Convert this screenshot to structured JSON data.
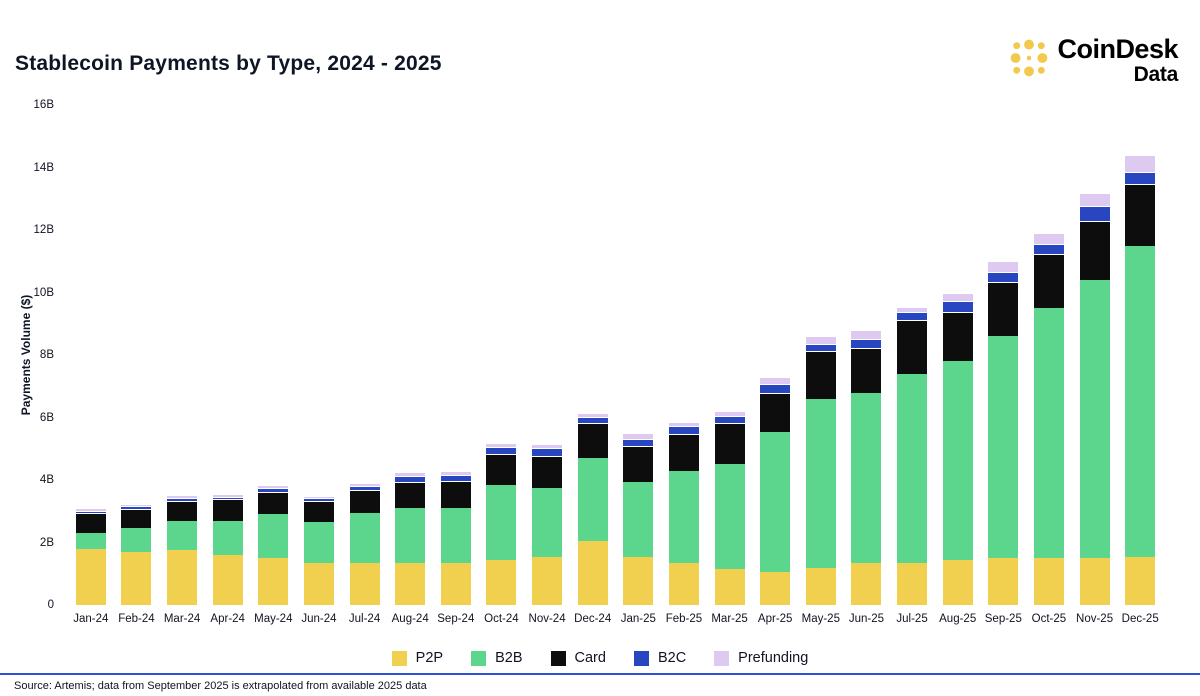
{
  "header": {
    "title": "Stablecoin Payments by Type, 2024 - 2025",
    "logo": {
      "brand": "CoinDesk",
      "sub": "Data",
      "icon": "coindesk-dots-icon"
    }
  },
  "chart_data": {
    "type": "bar",
    "stacked": true,
    "title": "Stablecoin Payments by Type, 2024 - 2025",
    "xlabel": "",
    "ylabel": "Payments Volume ($)",
    "units": "billions USD",
    "ylim": [
      0,
      16
    ],
    "grid": false,
    "legend_position": "bottom",
    "yticks": [
      {
        "label": "0",
        "value": 0
      },
      {
        "label": "2B",
        "value": 2
      },
      {
        "label": "4B",
        "value": 4
      },
      {
        "label": "6B",
        "value": 6
      },
      {
        "label": "8B",
        "value": 8
      },
      {
        "label": "10B",
        "value": 10
      },
      {
        "label": "12B",
        "value": 12
      },
      {
        "label": "14B",
        "value": 14
      },
      {
        "label": "16B",
        "value": 16
      }
    ],
    "categories": [
      "Jan-24",
      "Feb-24",
      "Mar-24",
      "Apr-24",
      "May-24",
      "Jun-24",
      "Jul-24",
      "Aug-24",
      "Sep-24",
      "Oct-24",
      "Nov-24",
      "Dec-24",
      "Jan-25",
      "Feb-25",
      "Mar-25",
      "Apr-25",
      "May-25",
      "Jun-25",
      "Jul-25",
      "Aug-25",
      "Sep-25",
      "Oct-25",
      "Nov-25",
      "Dec-25"
    ],
    "series": [
      {
        "name": "P2P",
        "color": "#F2D04F",
        "values": [
          1.8,
          1.7,
          1.75,
          1.6,
          1.5,
          1.35,
          1.35,
          1.35,
          1.35,
          1.45,
          1.55,
          2.05,
          1.55,
          1.35,
          1.15,
          1.05,
          1.2,
          1.35,
          1.35,
          1.45,
          1.5,
          1.5,
          1.5,
          1.55
        ]
      },
      {
        "name": "B2B",
        "color": "#5CD68C",
        "values": [
          0.5,
          0.75,
          0.95,
          1.1,
          1.4,
          1.3,
          1.6,
          1.75,
          1.75,
          2.4,
          2.2,
          2.65,
          2.4,
          2.95,
          3.35,
          4.5,
          5.4,
          5.45,
          6.05,
          6.35,
          7.1,
          8.0,
          8.9,
          9.95
        ]
      },
      {
        "name": "Card",
        "color": "#0D0D0D",
        "values": [
          0.6,
          0.6,
          0.6,
          0.65,
          0.7,
          0.65,
          0.7,
          0.8,
          0.85,
          0.95,
          1.0,
          1.1,
          1.1,
          1.15,
          1.3,
          1.2,
          1.5,
          1.4,
          1.7,
          1.55,
          1.7,
          1.7,
          1.85,
          1.95
        ]
      },
      {
        "name": "B2C",
        "color": "#2846C0",
        "values": [
          0.05,
          0.05,
          0.07,
          0.05,
          0.08,
          0.05,
          0.08,
          0.15,
          0.15,
          0.2,
          0.2,
          0.15,
          0.2,
          0.2,
          0.2,
          0.25,
          0.2,
          0.25,
          0.2,
          0.3,
          0.3,
          0.3,
          0.45,
          0.35
        ]
      },
      {
        "name": "Prefunding",
        "color": "#DEC9F1",
        "values": [
          0.05,
          0.05,
          0.05,
          0.05,
          0.07,
          0.05,
          0.07,
          0.1,
          0.1,
          0.1,
          0.1,
          0.1,
          0.15,
          0.1,
          0.1,
          0.2,
          0.2,
          0.25,
          0.15,
          0.25,
          0.3,
          0.3,
          0.4,
          0.5
        ]
      }
    ]
  },
  "footer": {
    "source": "Source: Artemis; data from September 2025 is extrapolated from available 2025 data"
  },
  "colors": {
    "brand_yellow": "#F2C94C",
    "divider_blue": "#3050D5",
    "background": "#FFFFFF"
  }
}
